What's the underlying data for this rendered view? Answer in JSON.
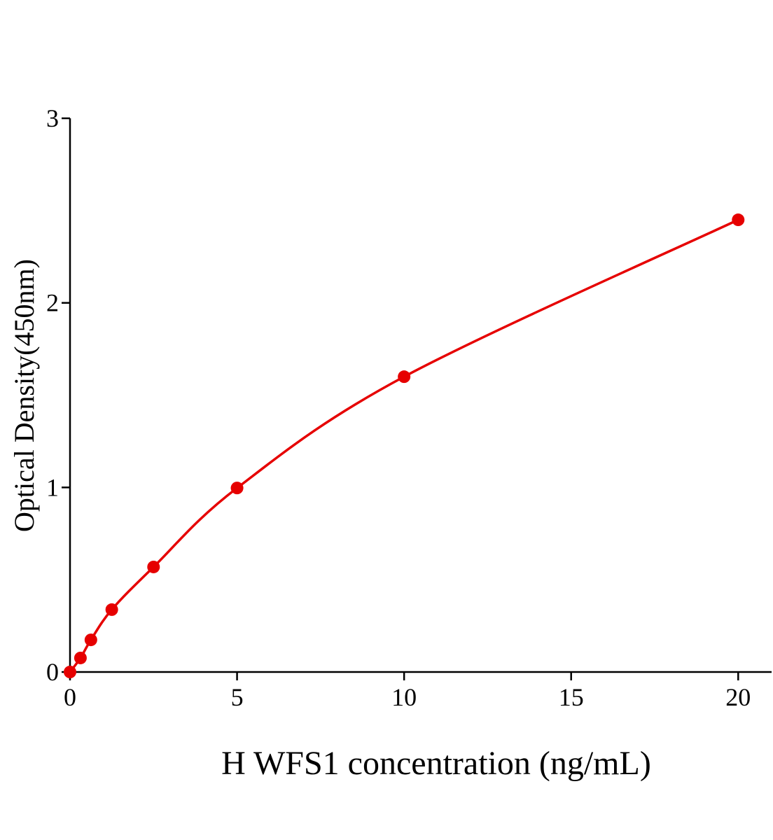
{
  "chart_data": {
    "type": "scatter",
    "x_label": "H WFS1 concentration (ng/mL)",
    "y_label": "Optical Density(450nm)",
    "series": [
      {
        "color": "#e60000",
        "x": [
          0,
          0.3125,
          0.625,
          1.25,
          2.5,
          5,
          10,
          20
        ],
        "values": [
          0,
          0.076,
          0.174,
          0.338,
          0.569,
          0.997,
          1.6,
          2.45
        ]
      }
    ],
    "xlim": [
      0,
      21
    ],
    "ylim": [
      0,
      3
    ],
    "xticks": [
      0,
      5,
      10,
      15,
      20
    ],
    "yticks": [
      0,
      1,
      2,
      3
    ],
    "curve": true
  }
}
